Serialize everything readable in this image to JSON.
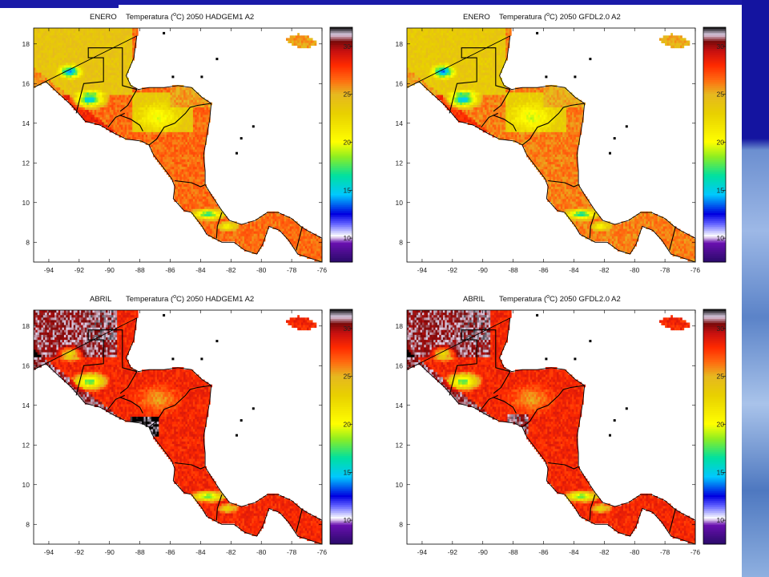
{
  "panels": [
    {
      "id": "p1",
      "month": "ENERO",
      "model": "Temperatura (ºC) 2050 HADGEM1 A2",
      "title_main": "Temperatura (",
      "title_super": "o",
      "title_tail": "C) 2050 HADGEM1 A2",
      "scenario": "jan-hadgem"
    },
    {
      "id": "p2",
      "month": "ENERO",
      "model": "Temperatura (ºC) 2050 GFDL2.0 A2",
      "title_main": "Temperatura (",
      "title_super": "o",
      "title_tail": "C) 2050 GFDL2.0 A2",
      "scenario": "jan-gfdl"
    },
    {
      "id": "p3",
      "month": "ABRIL",
      "model": "Temperatura (ºC) 2050 HADGEM1 A2",
      "title_main": "Temperatura (",
      "title_super": "o",
      "title_tail": "C) 2050 HADGEM1 A2",
      "scenario": "apr-hadgem"
    },
    {
      "id": "p4",
      "month": "ABRIL",
      "model": "Temperatura (ºC) 2050 GFDL2.0 A2",
      "title_main": "Temperatura (",
      "title_super": "o",
      "title_tail": "C) 2050 GFDL2.0 A2",
      "scenario": "apr-gfdl"
    }
  ],
  "axes": {
    "x_ticks": [
      "-94",
      "-92",
      "-90",
      "-88",
      "-86",
      "-84",
      "-82",
      "-80",
      "-78",
      "-76"
    ],
    "y_ticks": [
      "18",
      "16",
      "14",
      "12",
      "10",
      "8"
    ],
    "lon_range": [
      -95,
      -76
    ],
    "lat_range": [
      7,
      18.8
    ]
  },
  "colorbar": {
    "ticks": [
      "30",
      "25",
      "20",
      "15",
      "10"
    ],
    "range": [
      7.5,
      32
    ]
  }
}
